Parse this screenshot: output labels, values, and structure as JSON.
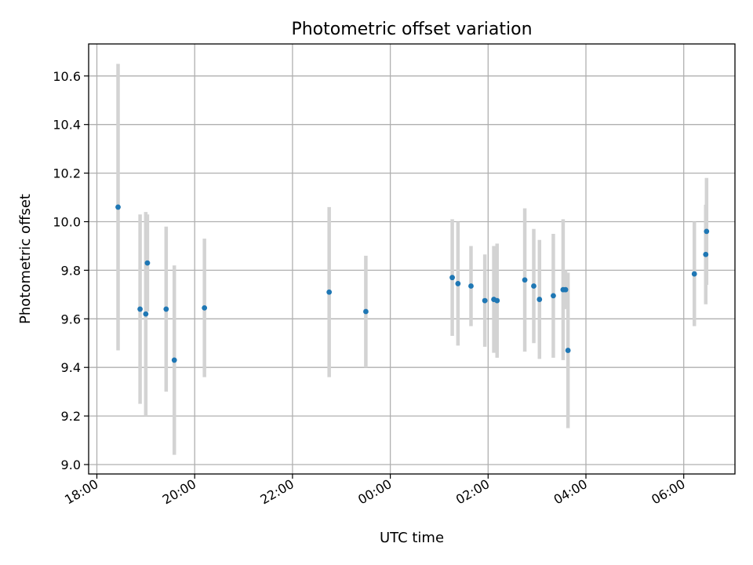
{
  "chart_data": {
    "type": "scatter",
    "title": "Photometric offset variation",
    "xlabel": "UTC time",
    "ylabel": "Photometric offset",
    "x_tick_labels": [
      "18:00",
      "20:00",
      "22:00",
      "00:00",
      "02:00",
      "04:00",
      "06:00"
    ],
    "y_tick_labels": [
      "9.0",
      "9.2",
      "9.4",
      "9.6",
      "9.8",
      "10.0",
      "10.2",
      "10.4",
      "10.6"
    ],
    "grid": true,
    "colors": {
      "points": "#1f77b4",
      "errorbars": "#d3d3d3",
      "grid": "#b0b0b0"
    },
    "points": [
      {
        "x": "18:26",
        "y": 10.06,
        "err": 0.59
      },
      {
        "x": "18:53",
        "y": 9.64,
        "err": 0.39
      },
      {
        "x": "19:00",
        "y": 9.62,
        "err": 0.42
      },
      {
        "x": "19:02",
        "y": 9.83,
        "err": 0.2
      },
      {
        "x": "19:25",
        "y": 9.64,
        "err": 0.34
      },
      {
        "x": "19:35",
        "y": 9.43,
        "err": 0.39
      },
      {
        "x": "20:12",
        "y": 9.645,
        "err": 0.285
      },
      {
        "x": "22:45",
        "y": 9.71,
        "err": 0.35
      },
      {
        "x": "23:30",
        "y": 9.63,
        "err": 0.23
      },
      {
        "x": "01:16",
        "y": 9.77,
        "err": 0.24
      },
      {
        "x": "01:23",
        "y": 9.745,
        "err": 0.255
      },
      {
        "x": "01:39",
        "y": 9.735,
        "err": 0.165
      },
      {
        "x": "01:56",
        "y": 9.675,
        "err": 0.19
      },
      {
        "x": "02:07",
        "y": 9.68,
        "err": 0.22
      },
      {
        "x": "02:11",
        "y": 9.675,
        "err": 0.235
      },
      {
        "x": "02:45",
        "y": 9.76,
        "err": 0.295
      },
      {
        "x": "02:56",
        "y": 9.735,
        "err": 0.235
      },
      {
        "x": "03:03",
        "y": 9.68,
        "err": 0.245
      },
      {
        "x": "03:20",
        "y": 9.695,
        "err": 0.255
      },
      {
        "x": "03:32",
        "y": 9.72,
        "err": 0.29
      },
      {
        "x": "03:35",
        "y": 9.72,
        "err": 0.08
      },
      {
        "x": "03:38",
        "y": 9.47,
        "err": 0.32
      },
      {
        "x": "06:13",
        "y": 9.785,
        "err": 0.215
      },
      {
        "x": "06:27",
        "y": 9.865,
        "err": 0.205
      },
      {
        "x": "06:28",
        "y": 9.96,
        "err": 0.22
      }
    ]
  }
}
